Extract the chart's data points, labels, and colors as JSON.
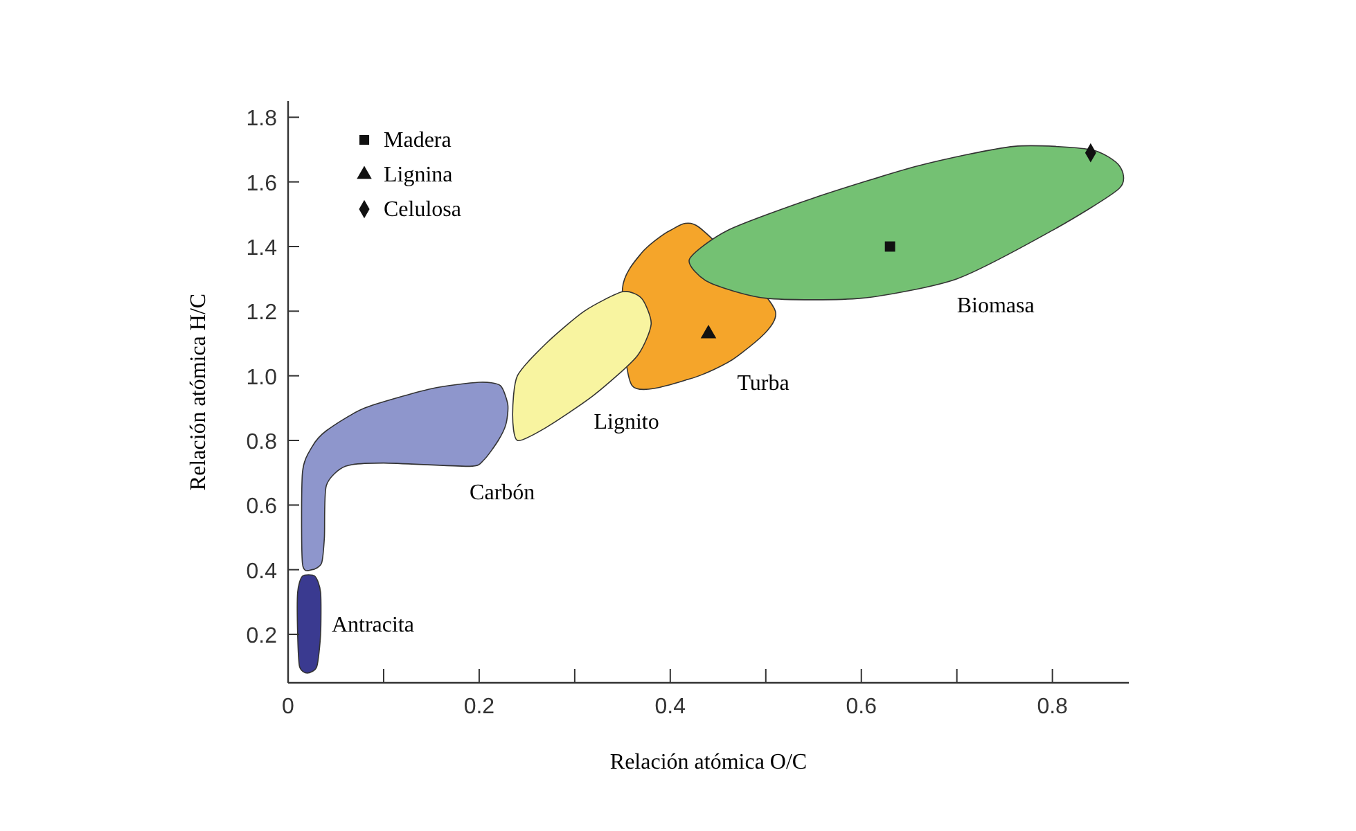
{
  "chart_data": {
    "type": "scatter",
    "xlabel": "Relación atómica O/C",
    "ylabel": "Relación atómica H/C",
    "xlim": [
      0,
      0.88
    ],
    "ylim": [
      0.05,
      1.85
    ],
    "xticks": [
      {
        "value": 0,
        "label": "0"
      },
      {
        "value": 0.1,
        "label": null
      },
      0.2,
      {
        "value": 0.3,
        "label": null
      },
      0.4,
      {
        "value": 0.5,
        "label": null
      },
      0.6,
      {
        "value": 0.7,
        "label": null
      },
      0.8
    ],
    "yticks": [
      0.2,
      0.4,
      0.6,
      0.8,
      {
        "value": 1,
        "label": "1.0"
      },
      1.2,
      1.4,
      1.6,
      1.8
    ],
    "grid": false,
    "legend": "top left",
    "series": [
      {
        "type": "area",
        "name": "Antracita",
        "color": "#3a3a90",
        "x": [
          0.012,
          0.02,
          0.03,
          0.034,
          0.034,
          0.028,
          0.015,
          0.01,
          0.01
        ],
        "values": [
          0.1,
          0.08,
          0.1,
          0.2,
          0.33,
          0.38,
          0.38,
          0.33,
          0.2
        ]
      },
      {
        "type": "area",
        "name": "Carbón",
        "color": "#8e96cc",
        "x": [
          0.015,
          0.015,
          0.025,
          0.04,
          0.08,
          0.15,
          0.2,
          0.222,
          0.23,
          0.228,
          0.22,
          0.205,
          0.19,
          0.1,
          0.06,
          0.04,
          0.038,
          0.035,
          0.025
        ],
        "values": [
          0.42,
          0.7,
          0.78,
          0.83,
          0.9,
          0.96,
          0.98,
          0.97,
          0.91,
          0.85,
          0.8,
          0.74,
          0.72,
          0.73,
          0.72,
          0.66,
          0.5,
          0.42,
          0.4
        ]
      },
      {
        "type": "area",
        "name": "Turba",
        "color": "#f5a52a",
        "x": [
          0.36,
          0.42,
          0.47,
          0.51,
          0.43,
          0.4,
          0.37,
          0.35
        ],
        "values": [
          0.97,
          0.99,
          1.06,
          1.2,
          1.46,
          1.45,
          1.38,
          1.27
        ]
      },
      {
        "type": "area",
        "name": "Lignito",
        "color": "#f8f4a0",
        "x": [
          0.24,
          0.27,
          0.32,
          0.365,
          0.38,
          0.37,
          0.35,
          0.31,
          0.27,
          0.24,
          0.235
        ],
        "values": [
          0.8,
          0.84,
          0.94,
          1.06,
          1.16,
          1.24,
          1.26,
          1.2,
          1.1,
          1.0,
          0.88
        ]
      },
      {
        "type": "area",
        "name": "Biomasa",
        "color": "#74c173",
        "x": [
          0.42,
          0.44,
          0.5,
          0.6,
          0.7,
          0.8,
          0.87,
          0.87,
          0.84,
          0.76,
          0.66,
          0.55,
          0.46
        ],
        "values": [
          1.36,
          1.29,
          1.24,
          1.24,
          1.3,
          1.45,
          1.58,
          1.65,
          1.7,
          1.71,
          1.65,
          1.55,
          1.45
        ]
      },
      {
        "name": "Madera",
        "marker": "square",
        "color": "#111111",
        "x": [
          0.63
        ],
        "values": [
          1.4
        ]
      },
      {
        "name": "Lignina",
        "marker": "triangle",
        "color": "#111111",
        "x": [
          0.44
        ],
        "values": [
          1.13
        ]
      },
      {
        "name": "Celulosa",
        "marker": "diamond",
        "color": "#111111",
        "x": [
          0.84
        ],
        "values": [
          1.69
        ]
      }
    ]
  }
}
